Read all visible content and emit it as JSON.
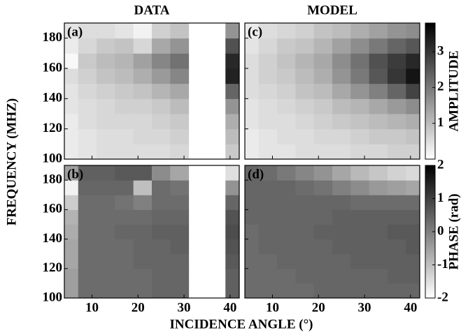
{
  "column_titles": [
    "DATA",
    "MODEL"
  ],
  "ylabel": "FREQUENCY (MHZ)",
  "xlabel": "INCIDENCE ANGLE (°)",
  "colorbars": [
    {
      "label": "AMPLITUDE",
      "lim": [
        0,
        3.8
      ],
      "ticks": [
        1,
        2,
        3
      ]
    },
    {
      "label": "PHASE (rad)",
      "lim": [
        -2,
        2
      ],
      "ticks": [
        -2,
        -1,
        0,
        1,
        2
      ]
    }
  ],
  "chart_data": [
    {
      "type": "heatmap",
      "label": "(a)",
      "x": [
        5,
        9,
        13,
        17,
        21,
        25,
        29,
        33,
        37,
        41
      ],
      "y": [
        105,
        115,
        125,
        135,
        145,
        155,
        165,
        175,
        185
      ],
      "z": [
        [
          0.3,
          0.4,
          0.5,
          0.5,
          0.5,
          0.5,
          0.6,
          null,
          null,
          0.8
        ],
        [
          0.3,
          0.4,
          0.5,
          0.5,
          0.6,
          0.6,
          0.7,
          null,
          null,
          1.0
        ],
        [
          0.3,
          0.5,
          0.6,
          0.6,
          0.6,
          0.7,
          0.8,
          null,
          null,
          1.2
        ],
        [
          0.4,
          0.5,
          0.6,
          0.7,
          0.7,
          0.8,
          1.0,
          null,
          null,
          1.6
        ],
        [
          0.4,
          0.6,
          0.7,
          0.8,
          0.9,
          1.1,
          1.3,
          null,
          null,
          2.3
        ],
        [
          0.5,
          0.7,
          0.9,
          1.0,
          1.2,
          1.5,
          1.8,
          null,
          null,
          3.3
        ],
        [
          0.1,
          0.8,
          1.0,
          1.1,
          1.4,
          1.8,
          2.1,
          null,
          null,
          3.2
        ],
        [
          0.3,
          0.6,
          0.8,
          0.9,
          0.6,
          1.3,
          1.6,
          null,
          null,
          2.6
        ],
        [
          0.4,
          0.5,
          0.5,
          0.4,
          0.2,
          0.7,
          0.9,
          null,
          null,
          1.6
        ]
      ],
      "xlim": [
        4,
        42
      ],
      "ylim": [
        100,
        190
      ],
      "xticks": [
        10,
        20,
        30,
        40
      ],
      "yticks": [
        100,
        120,
        140,
        160,
        180
      ]
    },
    {
      "type": "heatmap",
      "label": "(b)",
      "x": [
        5,
        9,
        13,
        17,
        21,
        25,
        29,
        33,
        37,
        41
      ],
      "y": [
        105,
        115,
        125,
        135,
        145,
        155,
        165,
        175,
        185
      ],
      "z": [
        [
          -0.5,
          0.3,
          0.3,
          0.3,
          0.3,
          0.4,
          0.4,
          null,
          null,
          0.5
        ],
        [
          -0.5,
          0.3,
          0.3,
          0.3,
          0.3,
          0.4,
          0.4,
          null,
          null,
          0.5
        ],
        [
          -0.6,
          0.3,
          0.3,
          0.3,
          0.4,
          0.4,
          0.4,
          null,
          null,
          0.6
        ],
        [
          -0.6,
          0.3,
          0.3,
          0.3,
          0.4,
          0.4,
          0.5,
          null,
          null,
          0.7
        ],
        [
          -0.7,
          0.3,
          0.3,
          0.4,
          0.4,
          0.5,
          0.5,
          null,
          null,
          0.8
        ],
        [
          -0.8,
          0.3,
          0.3,
          0.3,
          0.3,
          0.4,
          0.4,
          null,
          null,
          0.7
        ],
        [
          -1.2,
          0.3,
          0.3,
          0.2,
          0.0,
          0.3,
          0.3,
          null,
          null,
          0.4
        ],
        [
          -1.8,
          0.4,
          0.4,
          0.4,
          -1.0,
          0.3,
          0.2,
          null,
          null,
          -0.3
        ],
        [
          -0.5,
          0.5,
          0.5,
          0.6,
          0.6,
          -0.2,
          -0.6,
          null,
          null,
          -1.5
        ]
      ],
      "xlim": [
        4,
        42
      ],
      "ylim": [
        100,
        190
      ],
      "xticks": [
        10,
        20,
        30,
        40
      ],
      "yticks": [
        100,
        120,
        140,
        160,
        180
      ]
    },
    {
      "type": "heatmap",
      "label": "(c)",
      "x": [
        5,
        9,
        13,
        17,
        21,
        25,
        29,
        33,
        37,
        41
      ],
      "y": [
        105,
        115,
        125,
        135,
        145,
        155,
        165,
        175,
        185
      ],
      "z": [
        [
          0.3,
          0.4,
          0.4,
          0.5,
          0.5,
          0.5,
          0.6,
          0.6,
          0.7,
          0.7
        ],
        [
          0.3,
          0.4,
          0.5,
          0.5,
          0.6,
          0.6,
          0.7,
          0.8,
          0.8,
          0.9
        ],
        [
          0.4,
          0.5,
          0.5,
          0.6,
          0.7,
          0.8,
          0.9,
          1.0,
          1.1,
          1.2
        ],
        [
          0.4,
          0.5,
          0.6,
          0.7,
          0.8,
          1.0,
          1.1,
          1.3,
          1.5,
          1.7
        ],
        [
          0.5,
          0.6,
          0.7,
          0.9,
          1.0,
          1.3,
          1.6,
          1.9,
          2.3,
          2.8
        ],
        [
          0.5,
          0.7,
          0.8,
          1.0,
          1.2,
          1.6,
          2.0,
          2.5,
          3.0,
          3.5
        ],
        [
          0.5,
          0.7,
          0.9,
          1.1,
          1.3,
          1.7,
          2.1,
          2.6,
          2.9,
          3.2
        ],
        [
          0.4,
          0.6,
          0.8,
          0.9,
          1.1,
          1.4,
          1.7,
          2.0,
          2.3,
          2.5
        ],
        [
          0.3,
          0.5,
          0.6,
          0.7,
          0.9,
          1.0,
          1.2,
          1.4,
          1.6,
          1.7
        ]
      ],
      "xlim": [
        4,
        42
      ],
      "ylim": [
        100,
        190
      ],
      "xticks": [
        10,
        20,
        30,
        40
      ],
      "yticks": [
        100,
        120,
        140,
        160,
        180
      ]
    },
    {
      "type": "heatmap",
      "label": "(d)",
      "x": [
        5,
        9,
        13,
        17,
        21,
        25,
        29,
        33,
        37,
        41
      ],
      "y": [
        105,
        115,
        125,
        135,
        145,
        155,
        165,
        175,
        185
      ],
      "z": [
        [
          0.3,
          0.3,
          0.3,
          0.3,
          0.4,
          0.4,
          0.4,
          0.4,
          0.4,
          0.4
        ],
        [
          0.3,
          0.3,
          0.3,
          0.4,
          0.4,
          0.4,
          0.4,
          0.4,
          0.5,
          0.5
        ],
        [
          0.3,
          0.3,
          0.4,
          0.4,
          0.4,
          0.4,
          0.5,
          0.5,
          0.5,
          0.5
        ],
        [
          0.3,
          0.4,
          0.4,
          0.4,
          0.4,
          0.5,
          0.5,
          0.5,
          0.5,
          0.6
        ],
        [
          0.3,
          0.4,
          0.4,
          0.4,
          0.5,
          0.5,
          0.5,
          0.5,
          0.6,
          0.6
        ],
        [
          0.4,
          0.4,
          0.4,
          0.4,
          0.4,
          0.5,
          0.5,
          0.5,
          0.5,
          0.5
        ],
        [
          0.4,
          0.4,
          0.4,
          0.4,
          0.4,
          0.4,
          0.3,
          0.3,
          0.3,
          0.3
        ],
        [
          0.4,
          0.4,
          0.4,
          0.3,
          0.2,
          0.0,
          -0.2,
          -0.4,
          -0.5,
          -0.6
        ],
        [
          0.4,
          0.3,
          0.1,
          -0.1,
          -0.3,
          -0.6,
          -0.9,
          -1.1,
          -1.3,
          -1.4
        ]
      ],
      "xlim": [
        4,
        42
      ],
      "ylim": [
        100,
        190
      ],
      "xticks": [
        10,
        20,
        30,
        40
      ],
      "yticks": [
        100,
        120,
        140,
        160,
        180
      ]
    }
  ]
}
